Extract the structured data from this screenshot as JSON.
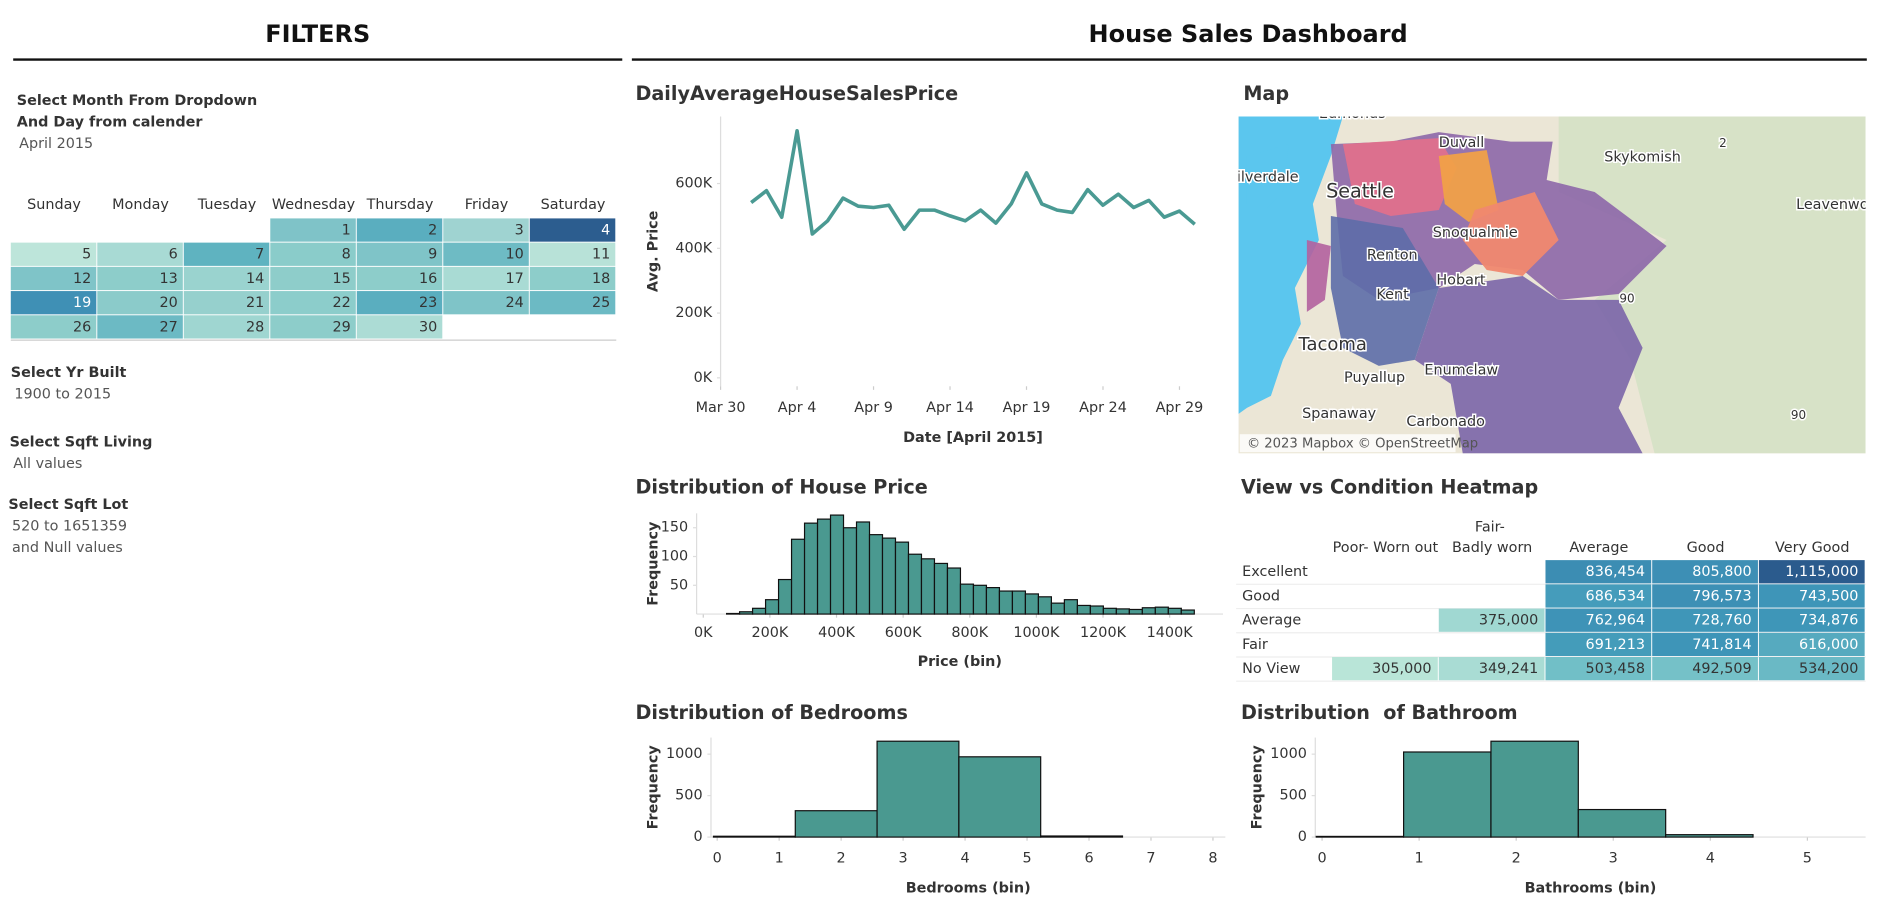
{
  "dashboard_title": "House Sales Dashboard",
  "filters": {
    "title": "FILTERS",
    "month_filter": {
      "label_lines": [
        "Select Month From Dropdown",
        "And Day from calender"
      ],
      "value": "April 2015"
    },
    "calendar": {
      "weekdays": [
        "Sunday",
        "Monday",
        "Tuesday",
        "Wednesday",
        "Thursday",
        "Friday",
        "Saturday"
      ],
      "days": [
        {
          "value": "2015-04-01",
          "label": "1"
        },
        {
          "value": "2015-04-02",
          "label": "2"
        },
        {
          "value": "2015-04-03",
          "label": "3"
        },
        {
          "value": "2015-04-04",
          "label": "4"
        },
        {
          "value": "2015-04-05",
          "label": "5"
        },
        {
          "value": "2015-04-06",
          "label": "6"
        },
        {
          "value": "2015-04-07",
          "label": "7"
        },
        {
          "value": "2015-04-08",
          "label": "8"
        },
        {
          "value": "2015-04-09",
          "label": "9"
        },
        {
          "value": "2015-04-10",
          "label": "10"
        },
        {
          "value": "2015-04-11",
          "label": "11"
        },
        {
          "value": "2015-04-12",
          "label": "12"
        },
        {
          "value": "2015-04-13",
          "label": "13"
        },
        {
          "value": "2015-04-14",
          "label": "14"
        },
        {
          "value": "2015-04-15",
          "label": "15"
        },
        {
          "value": "2015-04-16",
          "label": "16"
        },
        {
          "value": "2015-04-17",
          "label": "17"
        },
        {
          "value": "2015-04-18",
          "label": "18"
        },
        {
          "value": "2015-04-19",
          "label": "19"
        },
        {
          "value": "2015-04-20",
          "label": "20"
        },
        {
          "value": "2015-04-21",
          "label": "21"
        },
        {
          "value": "2015-04-22",
          "label": "22"
        },
        {
          "value": "2015-04-23",
          "label": "23"
        },
        {
          "value": "2015-04-24",
          "label": "24"
        },
        {
          "value": "2015-04-25",
          "label": "25"
        },
        {
          "value": "2015-04-26",
          "label": "26"
        },
        {
          "value": "2015-04-27",
          "label": "27"
        },
        {
          "value": "2015-04-28",
          "label": "28"
        },
        {
          "value": "2015-04-29",
          "label": "29"
        },
        {
          "value": "2015-04-30",
          "label": "30"
        }
      ],
      "colors": [
        "#7fc3c8",
        "#5aaebf",
        "#9fd3d1",
        "#2c5d8f",
        "#bde5da",
        "#a8dad4",
        "#5fb3c0",
        "#8accca",
        "#7fc4c8",
        "#6ebbc4",
        "#b8e2d8",
        "#7fc4c8",
        "#8dcdca",
        "#9ad3cf",
        "#8ecdca",
        "#8dcdca",
        "#a9dbd4",
        "#8dcdca",
        "#3f90b5",
        "#8bcbca",
        "#96d0cd",
        "#8ccdcb",
        "#5aaebf",
        "#7fc4c8",
        "#6cbac4",
        "#8dcdca",
        "#6cbac4",
        "#9fd6d1",
        "#8dcdca",
        "#acdcd5"
      ]
    },
    "yr_built": {
      "label": "Select Yr Built",
      "value_lines": [
        "1900 to 2015"
      ]
    },
    "sqft_living": {
      "label": "Select Sqft Living",
      "value_lines": [
        "All values"
      ]
    },
    "sqft_lot": {
      "label": "Select Sqft Lot",
      "value_lines": [
        "520 to 1651359",
        "and Null values"
      ]
    }
  },
  "map": {
    "title": "Map",
    "attribution": "© 2023 Mapbox © OpenStreetMap",
    "labels": [
      "Edmonds",
      "Duvall",
      "Skykomish",
      "Silverdale",
      "Seattle",
      "Leavenworth",
      "Snoqualmie",
      "Renton",
      "Kent",
      "Hobart",
      "Tacoma",
      "Puyallup",
      "Enumclaw",
      "Spanaway",
      "Carbonado",
      "2",
      "90",
      "90"
    ]
  },
  "chart_data": [
    {
      "type": "line",
      "title": "DailyAverageHouseSalesPrice",
      "xlabel": "Date [April 2015]",
      "ylabel": "Avg. Price",
      "color": "#4a9a93",
      "x": [
        "2015-04-01",
        "2015-04-02",
        "2015-04-03",
        "2015-04-04",
        "2015-04-05",
        "2015-04-06",
        "2015-04-07",
        "2015-04-08",
        "2015-04-09",
        "2015-04-10",
        "2015-04-11",
        "2015-04-12",
        "2015-04-13",
        "2015-04-14",
        "2015-04-15",
        "2015-04-16",
        "2015-04-17",
        "2015-04-18",
        "2015-04-19",
        "2015-04-20",
        "2015-04-21",
        "2015-04-22",
        "2015-04-23",
        "2015-04-24",
        "2015-04-25",
        "2015-04-26",
        "2015-04-27",
        "2015-04-28",
        "2015-04-29",
        "2015-04-30"
      ],
      "values": [
        541000,
        578000,
        496000,
        763000,
        444000,
        485000,
        555000,
        530000,
        526000,
        533000,
        459000,
        518000,
        518000,
        500000,
        485000,
        518000,
        478000,
        537000,
        633000,
        537000,
        518000,
        511000,
        581000,
        533000,
        567000,
        526000,
        548000,
        496000,
        515000,
        474000
      ],
      "xlim": [
        "2015-03-30",
        "2015-05-02"
      ],
      "xticks": [
        {
          "value": "2015-03-30",
          "label": "Mar 30"
        },
        {
          "value": "2015-04-04",
          "label": "Apr 4"
        },
        {
          "value": "2015-04-09",
          "label": "Apr 9"
        },
        {
          "value": "2015-04-14",
          "label": "Apr 14"
        },
        {
          "value": "2015-04-19",
          "label": "Apr 19"
        },
        {
          "value": "2015-04-24",
          "label": "Apr 24"
        },
        {
          "value": "2015-04-29",
          "label": "Apr 29"
        }
      ],
      "ylim": [
        -26000,
        807000
      ],
      "yticks": [
        {
          "value": 0,
          "label": "0K"
        },
        {
          "value": 200000,
          "label": "200K"
        },
        {
          "value": 400000,
          "label": "400K"
        },
        {
          "value": 600000,
          "label": "600K"
        }
      ],
      "grid": false
    },
    {
      "type": "histogram",
      "title": "Distribution of House Price",
      "xlabel": "Price (bin)",
      "ylabel": "Frequency",
      "color": "#4a9990",
      "bins": [
        70000,
        109000,
        148000,
        187000,
        226000,
        265000,
        304000,
        343000,
        382000,
        421000,
        460000,
        499000,
        538000,
        577000,
        616000,
        655000,
        694000,
        733000,
        772000,
        811000,
        850000,
        889000,
        928000,
        967000,
        1006000,
        1045000,
        1084000,
        1123000,
        1162000,
        1201000,
        1240000,
        1279000,
        1318000,
        1357000,
        1396000,
        1435000,
        1474000
      ],
      "values": [
        1,
        4,
        10,
        25,
        60,
        130,
        158,
        165,
        172,
        150,
        160,
        138,
        132,
        125,
        104,
        96,
        88,
        80,
        52,
        50,
        46,
        40,
        40,
        35,
        30,
        19,
        25,
        15,
        14,
        10,
        9,
        8,
        11,
        12,
        10,
        7
      ],
      "xlim": [
        -20000,
        1560000
      ],
      "xticks": [
        {
          "value": 0,
          "label": "0K"
        },
        {
          "value": 200000,
          "label": "200K"
        },
        {
          "value": 400000,
          "label": "400K"
        },
        {
          "value": 600000,
          "label": "600K"
        },
        {
          "value": 800000,
          "label": "800K"
        },
        {
          "value": 1000000,
          "label": "1000K"
        },
        {
          "value": 1200000,
          "label": "1200K"
        },
        {
          "value": 1400000,
          "label": "1400K"
        }
      ],
      "ylim": [
        0,
        175
      ],
      "yticks": [
        50,
        100,
        150
      ]
    },
    {
      "type": "heatmap",
      "title": "View vs Condition Heatmap",
      "rows": [
        "Excellent",
        "Good",
        "Average",
        "Fair",
        "No View"
      ],
      "columns": [
        "Poor- Worn out",
        "Fair- Badly worn",
        "Average",
        "Good",
        "Very Good"
      ],
      "values": [
        [
          null,
          null,
          836454,
          805800,
          1115000
        ],
        [
          null,
          null,
          686534,
          796573,
          743500
        ],
        [
          null,
          375000,
          762964,
          728760,
          734876
        ],
        [
          null,
          null,
          691213,
          741814,
          616000
        ],
        [
          305000,
          349241,
          503458,
          492509,
          534200
        ]
      ],
      "value_labels": [
        [
          null,
          null,
          "836,454",
          "805,800",
          "1,115,000"
        ],
        [
          null,
          null,
          "686,534",
          "796,573",
          "743,500"
        ],
        [
          null,
          "375,000",
          "762,964",
          "728,760",
          "734,876"
        ],
        [
          null,
          null,
          "691,213",
          "741,814",
          "616,000"
        ],
        [
          "305,000",
          "349,241",
          "503,458",
          "492,509",
          "534,200"
        ]
      ],
      "color_scale": [
        "#b9e5d8",
        "#70bec7",
        "#3f98b9",
        "#3a86b0",
        "#2b5b8d"
      ]
    },
    {
      "type": "histogram",
      "title": "Distribution of Bedrooms",
      "xlabel": "Bedrooms (bin)",
      "ylabel": "Frequency",
      "color": "#4a9990",
      "bins": [
        -0.06,
        1.26,
        2.58,
        3.9,
        5.22,
        6.54
      ],
      "values": [
        10,
        318,
        1156,
        968,
        13
      ],
      "xlim": [
        -0.1,
        8.2
      ],
      "xticks": [
        0,
        1,
        2,
        3,
        4,
        5,
        6,
        7,
        8
      ],
      "ylim": [
        0,
        1200
      ],
      "yticks": [
        0,
        500,
        1000
      ]
    },
    {
      "type": "histogram",
      "title": "Distribution  of Bathroom",
      "xlabel": "Bathrooms (bin)",
      "ylabel": "Frequency",
      "color": "#4a9990",
      "bins": [
        -0.06,
        0.84,
        1.74,
        2.64,
        3.54,
        4.44
      ],
      "values": [
        8,
        1026,
        1156,
        332,
        29
      ],
      "xlim": [
        -0.07,
        5.6
      ],
      "xticks": [
        0,
        1,
        2,
        3,
        4,
        5
      ],
      "ylim": [
        0,
        1200
      ],
      "yticks": [
        0,
        500,
        1000
      ]
    }
  ]
}
